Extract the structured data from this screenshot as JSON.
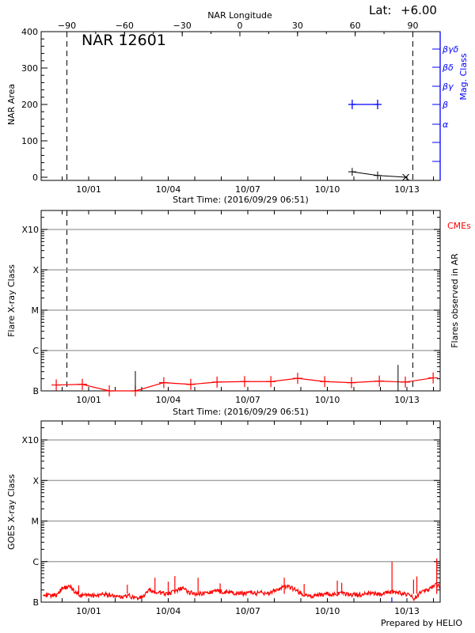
{
  "header": {
    "lat_label": "Lat:",
    "lat_value": "+6.00",
    "footer": "Prepared by HELIO"
  },
  "colors": {
    "axis": "#000000",
    "mag_class": "#0000ff",
    "flare": "#ff0000",
    "grid": "#999999"
  },
  "chart_data": [
    {
      "type": "line",
      "title": "NAR 12601",
      "ylabel": "NAR Area",
      "ylim": [
        0,
        400
      ],
      "yticks": [
        "0",
        "100",
        "200",
        "300",
        "400"
      ],
      "xlabel": "Start Time: (2016/09/29 06:51)",
      "xlim": [
        "2016-09-29T06:51",
        "2016-10-14T06:51"
      ],
      "xticks": [
        "10/01",
        "10/04",
        "10/07",
        "10/10",
        "10/13"
      ],
      "top_axis": {
        "label": "NAR Longitude",
        "ticks": [
          "-90",
          "-60",
          "-30",
          "0",
          "30",
          "60",
          "90"
        ]
      },
      "limb_lines_longitude": [
        -90,
        90
      ],
      "series": [
        {
          "points": [
            [
              "2016-10-10T22:30",
              15
            ],
            [
              "2016-10-11T21:30",
              5
            ],
            [
              "2016-10-12T23:00",
              0
            ]
          ]
        }
      ],
      "right_axis": {
        "label": "Mag. Class",
        "ticks": [
          "α",
          "β",
          "βγ",
          "βδ",
          "βγδ"
        ],
        "points": [
          [
            "2016-10-10T22:30",
            "β"
          ],
          [
            "2016-10-11T21:30",
            "β"
          ]
        ]
      }
    },
    {
      "type": "line",
      "ylabel": "Flare X-ray Class",
      "yscale": "log",
      "yticks": [
        "B",
        "C",
        "M",
        "X",
        "X10"
      ],
      "grid": true,
      "xlabel": "Start Time: (2016/09/29 06:51)",
      "xticks": [
        "10/01",
        "10/04",
        "10/07",
        "10/10",
        "10/13"
      ],
      "right_label": "Flares observed in AR",
      "right_legend": "CMEs",
      "series": [
        {
          "points": [
            [
              "2016-09-29T18:40",
              1.4e-07
            ],
            [
              "2016-09-30T18:15",
              1.45e-07
            ],
            [
              "2016-10-01T18:40",
              1e-07
            ],
            [
              "2016-10-02T18:15",
              1e-07
            ],
            [
              "2016-10-03T20:00",
              1.6e-07
            ],
            [
              "2016-10-04T20:24",
              1.45e-07
            ],
            [
              "2016-10-05T20:10",
              1.65e-07
            ],
            [
              "2016-10-06T21:07",
              1.7e-07
            ],
            [
              "2016-10-07T20:53",
              1.7e-07
            ],
            [
              "2016-10-08T21:07",
              2.05e-07
            ],
            [
              "2016-10-09T21:36",
              1.7e-07
            ],
            [
              "2016-10-10T21:50",
              1.6e-07
            ],
            [
              "2016-10-11T23:02",
              1.75e-07
            ],
            [
              "2016-10-12T22:34",
              1.65e-07
            ],
            [
              "2016-10-13T23:45",
              2.1e-07
            ]
          ]
        }
      ],
      "flares": [
        [
          "2016-10-02T18:15",
          3.1e-07
        ],
        [
          "2016-10-12T16:00",
          4.4e-07
        ]
      ]
    },
    {
      "type": "line",
      "ylabel": "GOES X-ray Class",
      "yscale": "log",
      "yticks": [
        "B",
        "C",
        "M",
        "X",
        "X10"
      ],
      "grid": true,
      "xticks": [
        "10/01",
        "10/04",
        "10/07",
        "10/10",
        "10/13"
      ],
      "series": [
        {
          "start": "2016-09-29T06:51",
          "step_hours": 6,
          "values_B": [
            1.6,
            1.4,
            1.5,
            2.2,
            2.4,
            1.6,
            1.4,
            1.5,
            1.4,
            1.5,
            1.5,
            1.3,
            1.3,
            1.4,
            1.2,
            1.3,
            1.9,
            1.7,
            1.6,
            1.6,
            1.8,
            2.2,
            1.7,
            1.6,
            1.6,
            1.7,
            1.8,
            1.8,
            1.7,
            1.6,
            1.6,
            1.7,
            1.6,
            1.7,
            1.6,
            1.9,
            2.2,
            2.3,
            2.0,
            1.5,
            1.4,
            1.4,
            1.5,
            1.6,
            1.5,
            1.6,
            1.5,
            1.5,
            1.5,
            1.6,
            1.6,
            1.5,
            1.7,
            1.8,
            1.6,
            1.5,
            1.2,
            1.8,
            1.9,
            2.6,
            2.4,
            2.2,
            1.9,
            1.9,
            1.8,
            2.2,
            2.3,
            1.9,
            2.0,
            1.8
          ],
          "spikes_B": [
            [
              "2016-09-30T15:00",
              2.6
            ],
            [
              "2016-10-02T11:00",
              2.7
            ],
            [
              "2016-10-03T12:00",
              4.0
            ],
            [
              "2016-10-04T00:00",
              3.2
            ],
            [
              "2016-10-04T06:00",
              4.4
            ],
            [
              "2016-10-05T03:00",
              4.0
            ],
            [
              "2016-10-05T23:00",
              2.9
            ],
            [
              "2016-10-08T09:00",
              4.0
            ],
            [
              "2016-10-09T03:00",
              2.8
            ],
            [
              "2016-10-10T09:00",
              3.4
            ],
            [
              "2016-10-10T13:00",
              3.0
            ],
            [
              "2016-10-12T10:30",
              9.9
            ],
            [
              "2016-10-13T06:00",
              3.6
            ],
            [
              "2016-10-13T09:00",
              4.3
            ],
            [
              "2016-10-14T03:00",
              12.0
            ]
          ]
        }
      ]
    }
  ]
}
